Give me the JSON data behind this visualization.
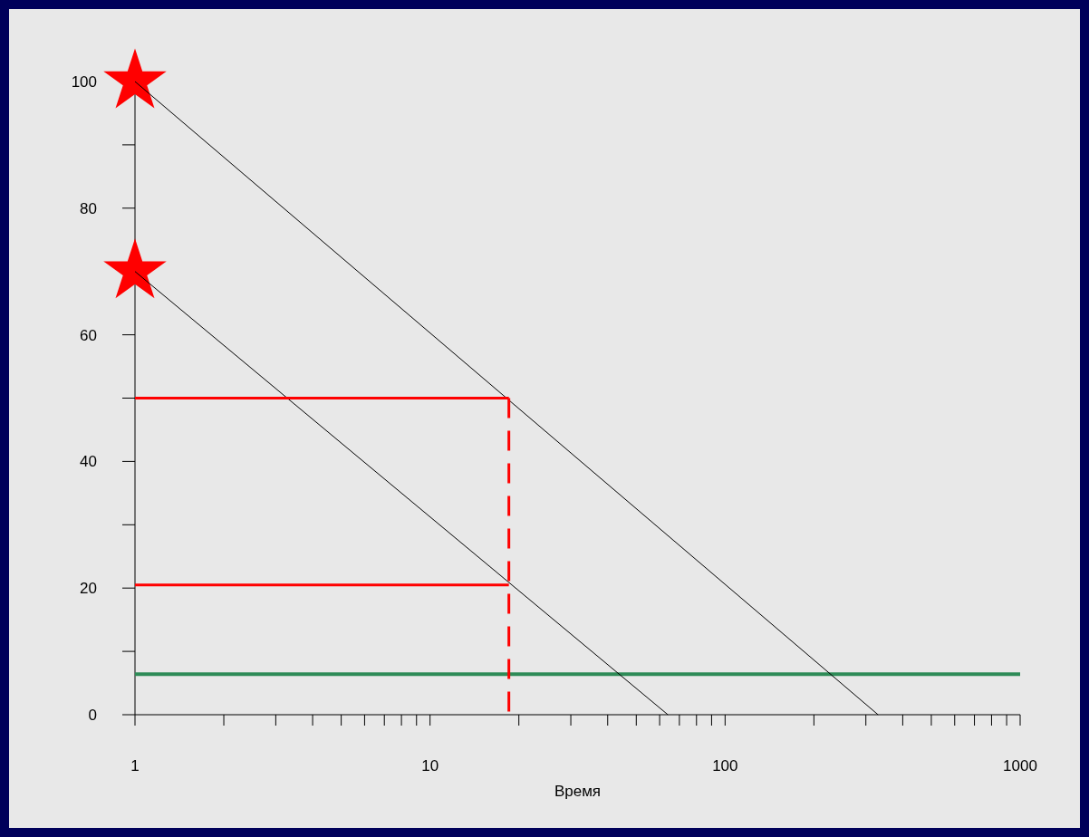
{
  "chart_data": {
    "type": "line",
    "xlabel": "Время",
    "log": "x",
    "xlim": [
      1,
      1000
    ],
    "ylim": [
      0,
      100
    ],
    "xticks": [
      1,
      {
        "value": 2,
        "label": null
      },
      {
        "value": 3,
        "label": null
      },
      {
        "value": 4,
        "label": null
      },
      {
        "value": 5,
        "label": null
      },
      {
        "value": 6,
        "label": null
      },
      {
        "value": 7,
        "label": null
      },
      {
        "value": 8,
        "label": null
      },
      {
        "value": 9,
        "label": null
      },
      10,
      {
        "value": 20,
        "label": null
      },
      {
        "value": 30,
        "label": null
      },
      {
        "value": 40,
        "label": null
      },
      {
        "value": 50,
        "label": null
      },
      {
        "value": 60,
        "label": null
      },
      {
        "value": 70,
        "label": null
      },
      {
        "value": 80,
        "label": null
      },
      {
        "value": 90,
        "label": null
      },
      100,
      {
        "value": 200,
        "label": null
      },
      {
        "value": 300,
        "label": null
      },
      {
        "value": 400,
        "label": null
      },
      {
        "value": 500,
        "label": null
      },
      {
        "value": 600,
        "label": null
      },
      {
        "value": 700,
        "label": null
      },
      {
        "value": 800,
        "label": null
      },
      {
        "value": 900,
        "label": null
      },
      1000
    ],
    "yticks": [
      0,
      {
        "value": 10,
        "label": null
      },
      20,
      {
        "value": 30,
        "label": null
      },
      40,
      {
        "value": 50,
        "label": null
      },
      60,
      {
        "value": 70,
        "label": null
      },
      80,
      {
        "value": 90,
        "label": null
      },
      100
    ],
    "grid": false,
    "series": [
      {
        "color": "#000000",
        "x": [
          1,
          330
        ],
        "values": [
          100,
          0
        ],
        "marker": "none",
        "line_style": "solid"
      },
      {
        "color": "#000000",
        "x": [
          1,
          64
        ],
        "values": [
          70,
          0
        ],
        "marker": "none",
        "line_style": "solid"
      },
      {
        "type": "line",
        "color": "#ff0000",
        "x": [
          1,
          18.5
        ],
        "values": [
          50,
          50
        ],
        "marker": "none",
        "line_style": "solid"
      },
      {
        "type": "line",
        "color": "#ff0000",
        "x": [
          1,
          18.5
        ],
        "values": [
          20.5,
          20.5
        ],
        "marker": "none",
        "line_style": "solid"
      },
      {
        "type": "line",
        "color": "#ff0000",
        "x": [
          18.5,
          18.5
        ],
        "values": [
          50,
          0
        ],
        "marker": "none",
        "line_style": "dashed"
      },
      {
        "type": "scatter",
        "color": "#ff0000",
        "x": [
          1,
          1
        ],
        "values": [
          100,
          70
        ],
        "marker": "star"
      }
    ],
    "ref_lines": [
      {
        "axis": "y",
        "value": 6.4,
        "label": null,
        "color": "#2e8b57"
      }
    ]
  }
}
